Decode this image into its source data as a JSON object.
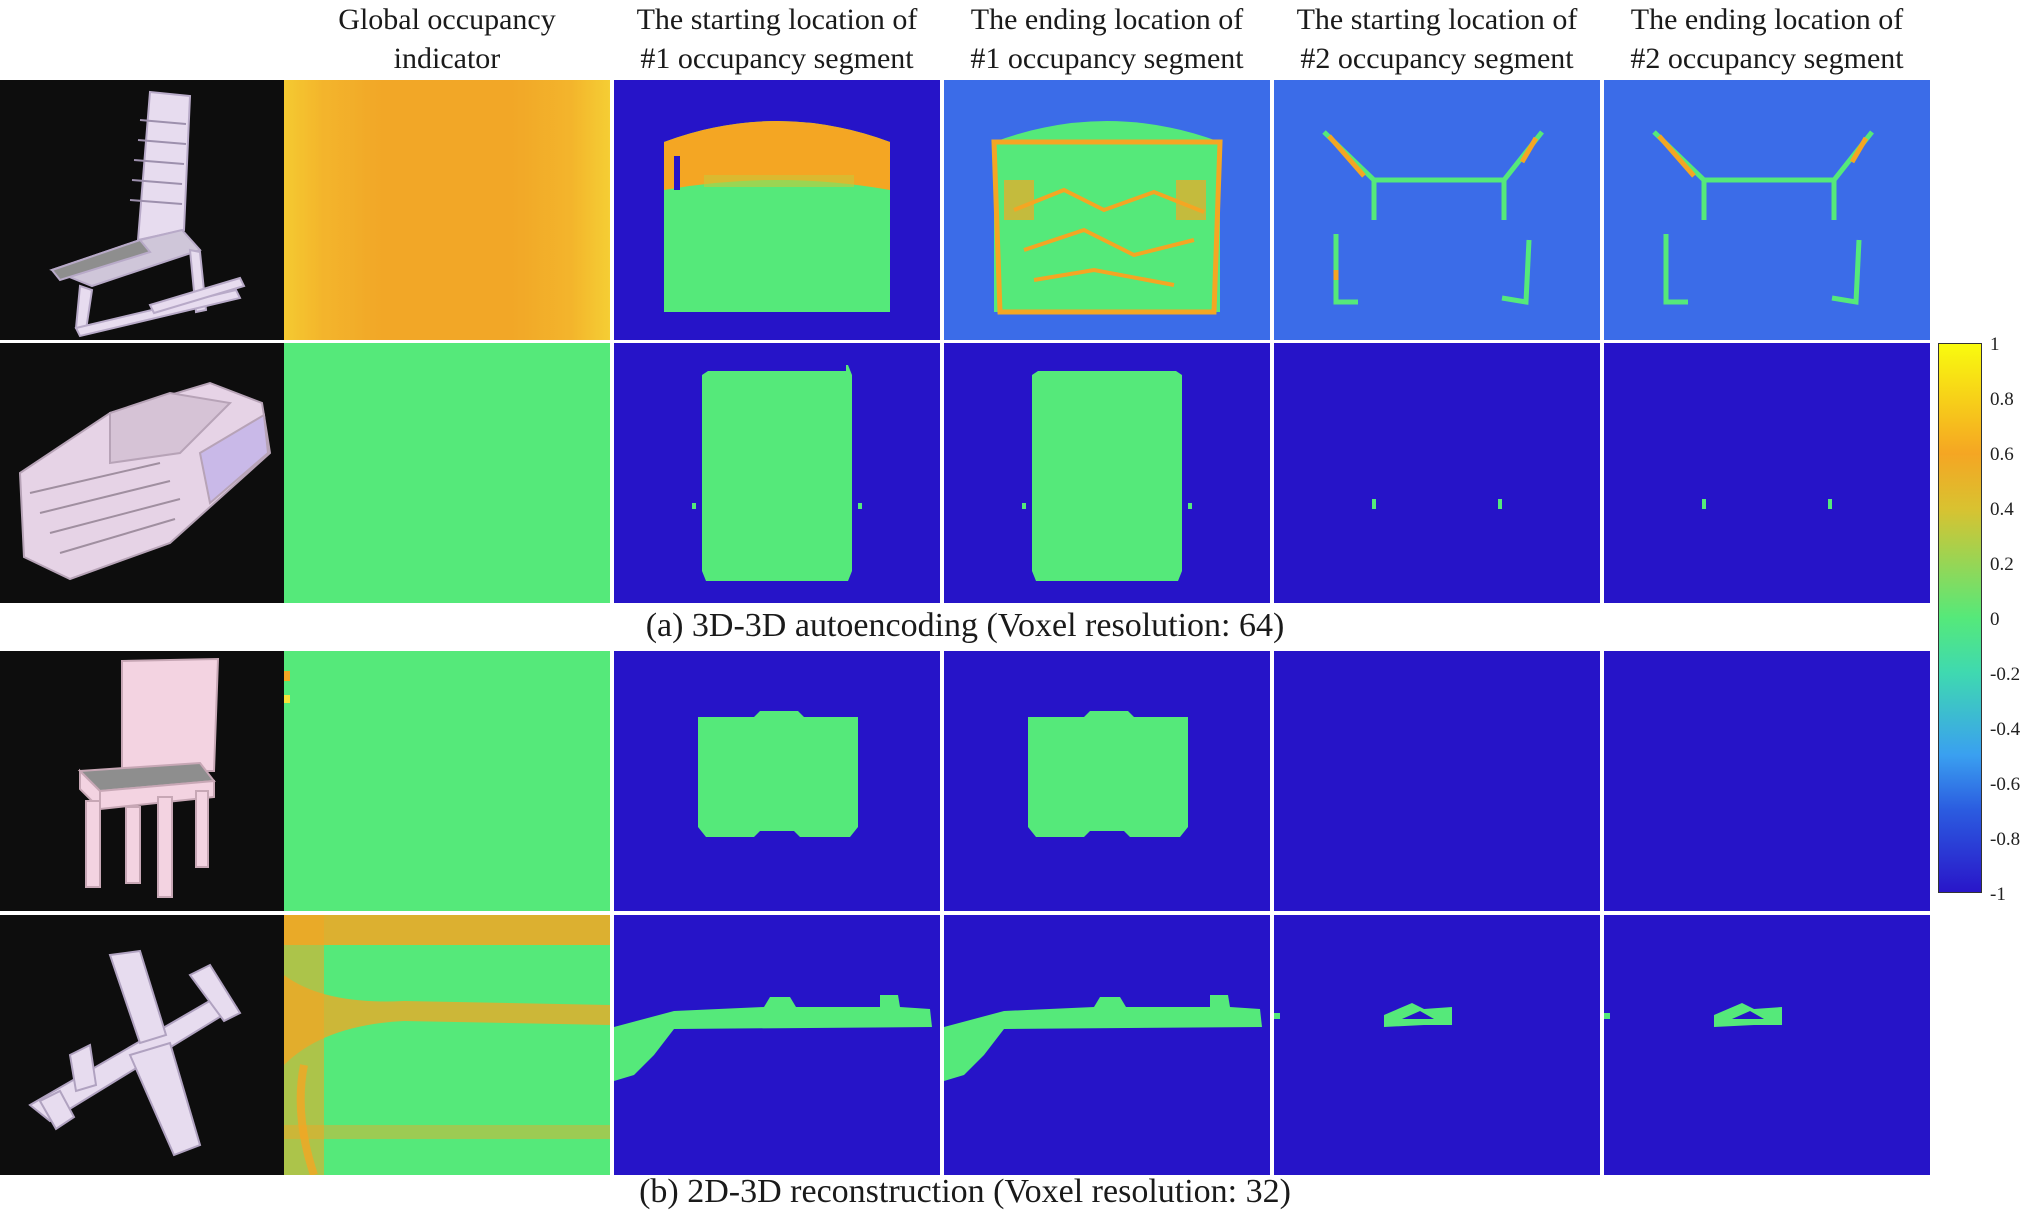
{
  "columns": [
    {
      "line1": "Global occupancy",
      "line2": "indicator"
    },
    {
      "line1": "The starting location of",
      "line2": "#1 occupancy segment"
    },
    {
      "line1": "The ending location of",
      "line2": "#1 occupancy segment"
    },
    {
      "line1": "The starting location of",
      "line2": "#2 occupancy segment"
    },
    {
      "line1": "The ending location of",
      "line2": "#2 occupancy segment"
    }
  ],
  "captions": {
    "a": "(a) 3D-3D autoencoding (Voxel resolution: 64)",
    "b": "(b) 2D-3D reconstruction (Voxel resolution: 32)"
  },
  "rows": [
    {
      "object": "chair",
      "object_color": "#e7dcef"
    },
    {
      "object": "car",
      "object_color": "#e6d3e6"
    },
    {
      "object": "chair",
      "object_color": "#f3d3e1"
    },
    {
      "object": "airplane",
      "object_color": "#e7dcef"
    }
  ],
  "colorbar": {
    "ticks": [
      "1",
      "0.8",
      "0.6",
      "0.4",
      "0.2",
      "0",
      "-0.2",
      "-0.4",
      "-0.6",
      "-0.8",
      "-1"
    ],
    "colors": {
      "max": "#f9fb0e",
      "high": "#f5a623",
      "mid": "#55e97a",
      "low": "#3aa0f0",
      "min": "#2916c9"
    }
  },
  "map_colors": {
    "deep_blue": "#2614c8",
    "blue": "#3b6ce8",
    "green": "#55e97a",
    "orange": "#f4a623",
    "yellow": "#f7e23a"
  }
}
